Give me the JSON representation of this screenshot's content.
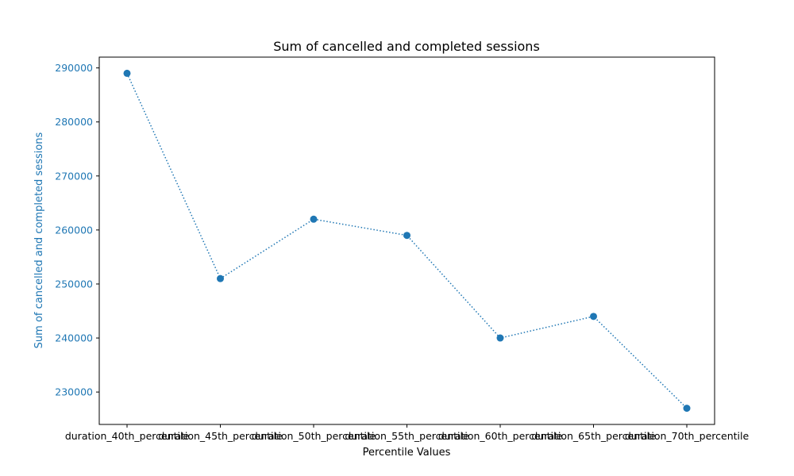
{
  "chart_data": {
    "type": "line",
    "title": "Sum of cancelled and completed sessions",
    "xlabel": "Percentile Values",
    "ylabel": "Sum of cancelled and completed sessions",
    "categories": [
      "duration_40th_percentile",
      "duration_45th_percentile",
      "duration_50th_percentile",
      "duration_55th_percentile",
      "duration_60th_percentile",
      "duration_65th_percentile",
      "duration_70th_percentile"
    ],
    "series": [
      {
        "values": [
          289000,
          251000,
          262000,
          259000,
          240000,
          244000,
          227000
        ],
        "color": "#1f77b4",
        "line_style": "dotted",
        "marker": "circle"
      }
    ],
    "ylim": [
      224000,
      292000
    ],
    "yticks": [
      230000,
      240000,
      250000,
      260000,
      270000,
      280000,
      290000
    ],
    "ylabel_color": "#1f77b4",
    "ytick_color": "#1f77b4",
    "grid": false,
    "legend": "none"
  }
}
